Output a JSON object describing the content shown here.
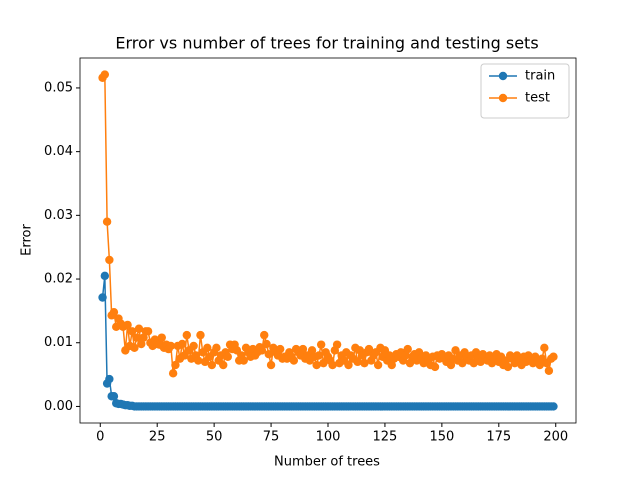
{
  "chart_data": {
    "type": "line",
    "title": "Error vs number of trees for training and testing sets",
    "xlabel": "Number of trees",
    "ylabel": "Error",
    "x": [
      1,
      2,
      3,
      4,
      5,
      6,
      7,
      8,
      9,
      10,
      11,
      12,
      13,
      14,
      15,
      16,
      17,
      18,
      19,
      20,
      21,
      22,
      23,
      24,
      25,
      26,
      27,
      28,
      29,
      30,
      31,
      32,
      33,
      34,
      35,
      36,
      37,
      38,
      39,
      40,
      41,
      42,
      43,
      44,
      45,
      46,
      47,
      48,
      49,
      50,
      51,
      52,
      53,
      54,
      55,
      56,
      57,
      58,
      59,
      60,
      61,
      62,
      63,
      64,
      65,
      66,
      67,
      68,
      69,
      70,
      71,
      72,
      73,
      74,
      75,
      76,
      77,
      78,
      79,
      80,
      81,
      82,
      83,
      84,
      85,
      86,
      87,
      88,
      89,
      90,
      91,
      92,
      93,
      94,
      95,
      96,
      97,
      98,
      99,
      100,
      101,
      102,
      103,
      104,
      105,
      106,
      107,
      108,
      109,
      110,
      111,
      112,
      113,
      114,
      115,
      116,
      117,
      118,
      119,
      120,
      121,
      122,
      123,
      124,
      125,
      126,
      127,
      128,
      129,
      130,
      131,
      132,
      133,
      134,
      135,
      136,
      137,
      138,
      139,
      140,
      141,
      142,
      143,
      144,
      145,
      146,
      147,
      148,
      149,
      150,
      151,
      152,
      153,
      154,
      155,
      156,
      157,
      158,
      159,
      160,
      161,
      162,
      163,
      164,
      165,
      166,
      167,
      168,
      169,
      170,
      171,
      172,
      173,
      174,
      175,
      176,
      177,
      178,
      179,
      180,
      181,
      182,
      183,
      184,
      185,
      186,
      187,
      188,
      189,
      190,
      191,
      192,
      193,
      194,
      195,
      196,
      197,
      198,
      199
    ],
    "series": [
      {
        "name": "train",
        "color": "#1f77b4",
        "values": [
          0.0171,
          0.0205,
          0.0036,
          0.0043,
          0.0016,
          0.0016,
          0.0005,
          0.0004,
          0.0004,
          0.0003,
          0.0002,
          0.0002,
          0.0001,
          0.0001,
          0,
          0,
          0,
          0,
          0,
          0,
          0,
          0,
          0,
          0,
          0,
          0,
          0,
          0,
          0,
          0,
          0,
          0,
          0,
          0,
          0,
          0,
          0,
          0,
          0,
          0,
          0,
          0,
          0,
          0,
          0,
          0,
          0,
          0,
          0,
          0,
          0,
          0,
          0,
          0,
          0,
          0,
          0,
          0,
          0,
          0,
          0,
          0,
          0,
          0,
          0,
          0,
          0,
          0,
          0,
          0,
          0,
          0,
          0,
          0,
          0,
          0,
          0,
          0,
          0,
          0,
          0,
          0,
          0,
          0,
          0,
          0,
          0,
          0,
          0,
          0,
          0,
          0,
          0,
          0,
          0,
          0,
          0,
          0,
          0,
          0,
          0,
          0,
          0,
          0,
          0,
          0,
          0,
          0,
          0,
          0,
          0,
          0,
          0,
          0,
          0,
          0,
          0,
          0,
          0,
          0,
          0,
          0,
          0,
          0,
          0,
          0,
          0,
          0,
          0,
          0,
          0,
          0,
          0,
          0,
          0,
          0,
          0,
          0,
          0,
          0,
          0,
          0,
          0,
          0,
          0,
          0,
          0,
          0,
          0,
          0,
          0,
          0,
          0,
          0,
          0,
          0,
          0,
          0,
          0,
          0,
          0,
          0,
          0,
          0,
          0,
          0,
          0,
          0,
          0,
          0,
          0,
          0,
          0,
          0,
          0,
          0,
          0,
          0,
          0,
          0,
          0,
          0,
          0,
          0,
          0,
          0,
          0,
          0,
          0,
          0,
          0,
          0,
          0,
          0,
          0,
          0,
          0,
          0,
          0
        ]
      },
      {
        "name": "test",
        "color": "#ff7f0e",
        "values": [
          0.0516,
          0.0521,
          0.029,
          0.023,
          0.0143,
          0.0148,
          0.0125,
          0.0138,
          0.013,
          0.0125,
          0.0088,
          0.0128,
          0.0095,
          0.0118,
          0.0092,
          0.0108,
          0.0122,
          0.0098,
          0.0108,
          0.0118,
          0.0118,
          0.01,
          0.0095,
          0.0105,
          0.0098,
          0.0097,
          0.0108,
          0.0092,
          0.0097,
          0.009,
          0.0095,
          0.0052,
          0.0065,
          0.0095,
          0.0075,
          0.0098,
          0.008,
          0.0112,
          0.0088,
          0.0075,
          0.0095,
          0.008,
          0.0072,
          0.0112,
          0.0085,
          0.007,
          0.0092,
          0.0078,
          0.0065,
          0.0085,
          0.0092,
          0.0072,
          0.008,
          0.0065,
          0.0085,
          0.0078,
          0.0097,
          0.009,
          0.0097,
          0.0088,
          0.0072,
          0.008,
          0.0072,
          0.0092,
          0.0085,
          0.0078,
          0.009,
          0.008,
          0.0085,
          0.0093,
          0.0088,
          0.0112,
          0.0098,
          0.0082,
          0.0065,
          0.0092,
          0.0085,
          0.008,
          0.009,
          0.0075,
          0.0078,
          0.0075,
          0.0085,
          0.0078,
          0.0072,
          0.009,
          0.0085,
          0.008,
          0.009,
          0.0075,
          0.008,
          0.0072,
          0.0088,
          0.0078,
          0.0065,
          0.008,
          0.0097,
          0.0068,
          0.0085,
          0.0078,
          0.0072,
          0.0065,
          0.0088,
          0.0097,
          0.0068,
          0.008,
          0.0072,
          0.0085,
          0.0065,
          0.008,
          0.0075,
          0.0092,
          0.007,
          0.0088,
          0.008,
          0.0068,
          0.0085,
          0.009,
          0.0072,
          0.008,
          0.0085,
          0.0065,
          0.0092,
          0.0078,
          0.0088,
          0.0072,
          0.008,
          0.0065,
          0.0075,
          0.0082,
          0.0078,
          0.0085,
          0.0072,
          0.008,
          0.009,
          0.0068,
          0.0078,
          0.0082,
          0.0072,
          0.0085,
          0.0075,
          0.0068,
          0.008,
          0.0072,
          0.0065,
          0.0078,
          0.0062,
          0.008,
          0.0075,
          0.0082,
          0.0078,
          0.007,
          0.008,
          0.0065,
          0.0075,
          0.0088,
          0.0072,
          0.008,
          0.0068,
          0.0085,
          0.0078,
          0.0072,
          0.008,
          0.0068,
          0.0085,
          0.0075,
          0.007,
          0.0082,
          0.0078,
          0.0072,
          0.008,
          0.0068,
          0.0075,
          0.0082,
          0.007,
          0.0078,
          0.0065,
          0.0072,
          0.0062,
          0.008,
          0.0075,
          0.0068,
          0.008,
          0.0072,
          0.0065,
          0.0078,
          0.007,
          0.008,
          0.0072,
          0.0068,
          0.0078,
          0.0072,
          0.0065,
          0.0075,
          0.0092,
          0.0068,
          0.0056,
          0.0075,
          0.0078
        ]
      }
    ],
    "xlim": [
      -8.9,
      208.9
    ],
    "xticks": [
      0,
      25,
      50,
      75,
      100,
      125,
      150,
      175,
      200
    ],
    "ylim": [
      -0.0026,
      0.0547
    ],
    "yticks": [
      {
        "value": 0,
        "label": "0.00"
      },
      {
        "value": 0.01,
        "label": "0.01"
      },
      {
        "value": 0.02,
        "label": "0.02"
      },
      {
        "value": 0.03,
        "label": "0.03"
      },
      {
        "value": 0.04,
        "label": "0.04"
      },
      {
        "value": 0.05,
        "label": "0.05"
      }
    ],
    "grid": false,
    "legend": "upper right",
    "markers": true
  }
}
